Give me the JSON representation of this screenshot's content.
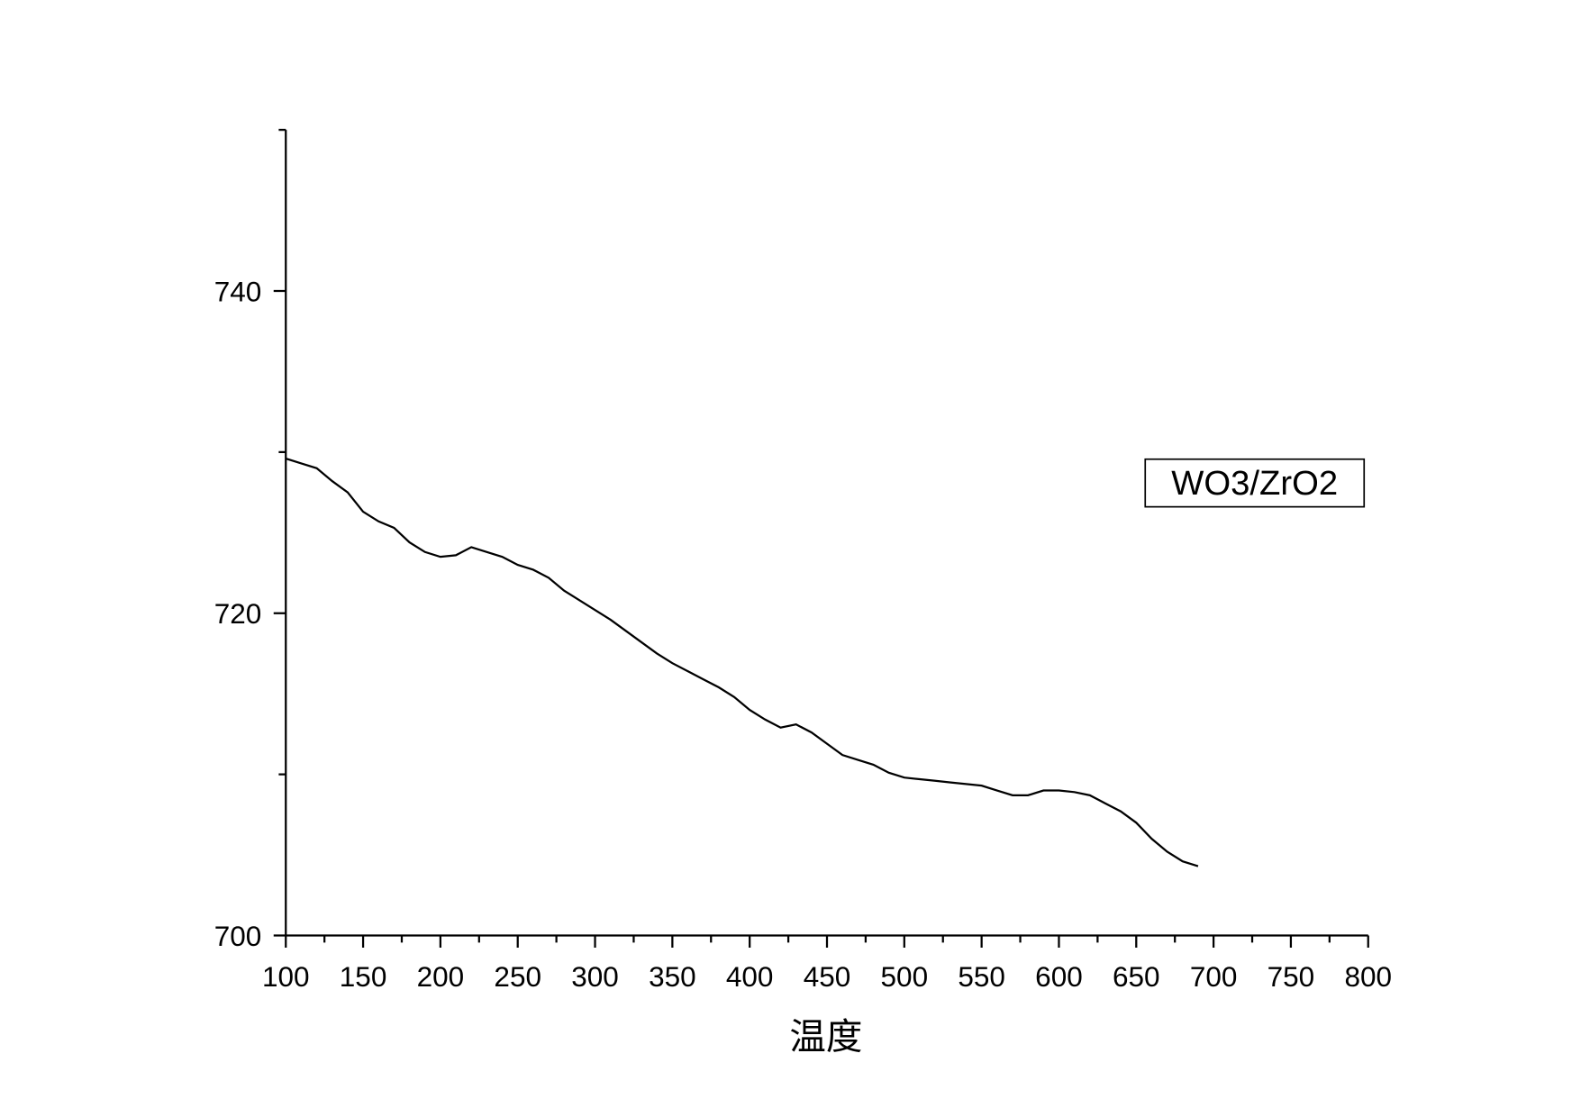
{
  "chart_data": {
    "type": "line",
    "x_label": "温度",
    "x": [
      100,
      110,
      120,
      130,
      140,
      150,
      160,
      170,
      180,
      190,
      200,
      210,
      220,
      230,
      240,
      250,
      260,
      270,
      280,
      290,
      300,
      310,
      320,
      330,
      340,
      350,
      360,
      370,
      380,
      390,
      400,
      410,
      420,
      430,
      440,
      450,
      460,
      470,
      480,
      490,
      500,
      510,
      520,
      530,
      540,
      550,
      560,
      570,
      580,
      590,
      600,
      610,
      620,
      630,
      640,
      650,
      660,
      670,
      680,
      690
    ],
    "series": [
      {
        "name": "WO3/ZrO2",
        "color": "#000000",
        "values": [
          729.6,
          729.3,
          729.0,
          728.2,
          727.5,
          726.3,
          725.7,
          725.3,
          724.4,
          723.8,
          723.5,
          723.6,
          724.1,
          723.8,
          723.5,
          723.0,
          722.7,
          722.2,
          721.4,
          720.8,
          720.2,
          719.6,
          718.9,
          718.2,
          717.5,
          716.9,
          716.4,
          715.9,
          715.4,
          714.8,
          714.0,
          713.4,
          712.9,
          713.1,
          712.6,
          711.9,
          711.2,
          710.9,
          710.6,
          710.1,
          709.8,
          709.7,
          709.6,
          709.5,
          709.4,
          709.3,
          709.0,
          708.7,
          708.7,
          709.0,
          709.0,
          708.9,
          708.7,
          708.2,
          707.7,
          707.0,
          706.0,
          705.2,
          704.6,
          704.3
        ]
      }
    ],
    "xlim": [
      100,
      800
    ],
    "xticks": [
      100,
      150,
      200,
      250,
      300,
      350,
      400,
      450,
      500,
      550,
      600,
      650,
      700,
      750,
      800
    ],
    "xminorticks": [
      125,
      175,
      225,
      275,
      325,
      375,
      425,
      475,
      525,
      575,
      625,
      675,
      725,
      775
    ],
    "ylim": [
      700,
      750
    ],
    "yticks": [
      700,
      720,
      740
    ],
    "yminorticks": [
      710,
      730,
      750
    ],
    "grid": false
  }
}
